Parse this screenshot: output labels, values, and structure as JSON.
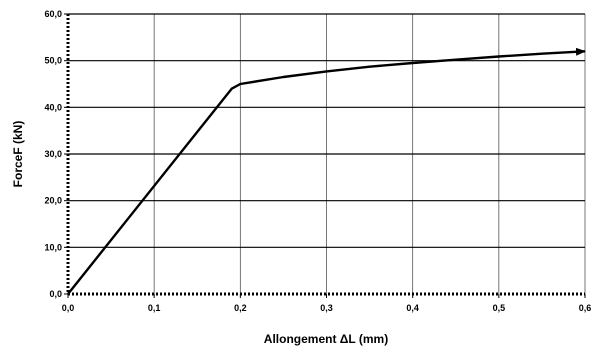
{
  "chart_data": {
    "type": "line",
    "title": "",
    "xlabel": "Allongement ΔL (mm)",
    "ylabel": "ForceF (kN)",
    "xlim": [
      0,
      0.6
    ],
    "ylim": [
      0,
      60
    ],
    "x_ticks": [
      "0,0",
      "0,1",
      "0,2",
      "0,3",
      "0,4",
      "0,5",
      "0,6"
    ],
    "y_ticks": [
      "0,0",
      "10,0",
      "20,0",
      "30,0",
      "40,0",
      "50,0",
      "60,0"
    ],
    "grid": true,
    "legend": "none",
    "series": [
      {
        "x": [
          0,
          0.19,
          0.2,
          0.25,
          0.3,
          0.35,
          0.4,
          0.45,
          0.5,
          0.55,
          0.6
        ],
        "y": [
          0,
          44,
          45,
          46.5,
          47.7,
          48.7,
          49.5,
          50.2,
          50.9,
          51.5,
          52
        ],
        "color": "#000000",
        "end_marker": "arrow"
      }
    ]
  }
}
